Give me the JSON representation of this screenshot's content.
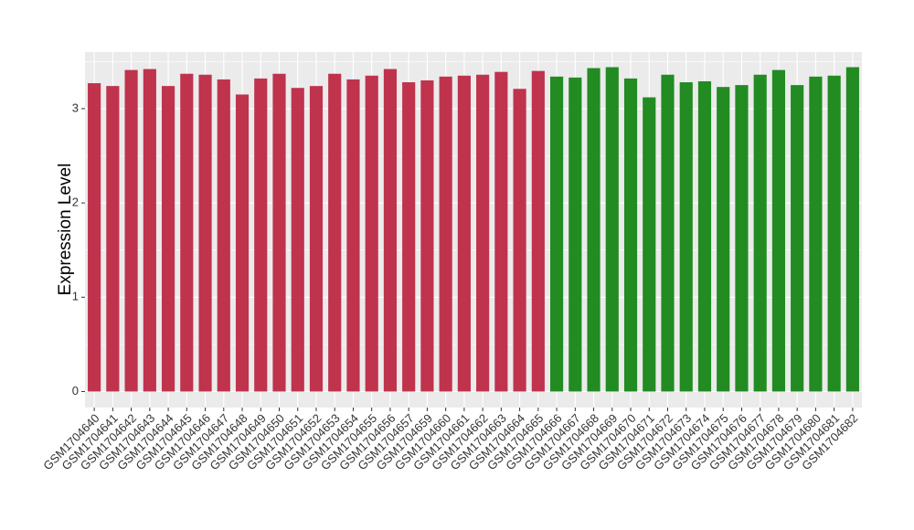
{
  "chart_data": {
    "type": "bar",
    "y_label": "Expression Level",
    "categories": [
      "GSM1704640",
      "GSM1704641",
      "GSM1704642",
      "GSM1704643",
      "GSM1704644",
      "GSM1704645",
      "GSM1704646",
      "GSM1704647",
      "GSM1704648",
      "GSM1704649",
      "GSM1704650",
      "GSM1704651",
      "GSM1704652",
      "GSM1704653",
      "GSM1704654",
      "GSM1704655",
      "GSM1704656",
      "GSM1704657",
      "GSM1704659",
      "GSM1704660",
      "GSM1704661",
      "GSM1704662",
      "GSM1704663",
      "GSM1704664",
      "GSM1704665",
      "GSM1704666",
      "GSM1704667",
      "GSM1704668",
      "GSM1704669",
      "GSM1704670",
      "GSM1704671",
      "GSM1704672",
      "GSM1704673",
      "GSM1704674",
      "GSM1704675",
      "GSM1704676",
      "GSM1704677",
      "GSM1704678",
      "GSM1704679",
      "GSM1704680",
      "GSM1704681",
      "GSM1704682"
    ],
    "values": [
      3.27,
      3.24,
      3.41,
      3.42,
      3.24,
      3.37,
      3.36,
      3.31,
      3.15,
      3.32,
      3.37,
      3.22,
      3.24,
      3.37,
      3.31,
      3.35,
      3.42,
      3.28,
      3.3,
      3.34,
      3.35,
      3.36,
      3.39,
      3.21,
      3.4,
      3.34,
      3.33,
      3.43,
      3.44,
      3.32,
      3.12,
      3.36,
      3.28,
      3.29,
      3.23,
      3.25,
      3.36,
      3.41,
      3.25,
      3.34,
      3.35,
      3.44
    ],
    "colors": [
      "#c0334d",
      "#c0334d",
      "#c0334d",
      "#c0334d",
      "#c0334d",
      "#c0334d",
      "#c0334d",
      "#c0334d",
      "#c0334d",
      "#c0334d",
      "#c0334d",
      "#c0334d",
      "#c0334d",
      "#c0334d",
      "#c0334d",
      "#c0334d",
      "#c0334d",
      "#c0334d",
      "#c0334d",
      "#c0334d",
      "#c0334d",
      "#c0334d",
      "#c0334d",
      "#c0334d",
      "#c0334d",
      "#228b22",
      "#228b22",
      "#228b22",
      "#228b22",
      "#228b22",
      "#228b22",
      "#228b22",
      "#228b22",
      "#228b22",
      "#228b22",
      "#228b22",
      "#228b22",
      "#228b22",
      "#228b22",
      "#228b22",
      "#228b22",
      "#228b22"
    ],
    "ylim": [
      -0.17,
      3.6
    ],
    "yticks": [
      0,
      1,
      2,
      3
    ],
    "grid": true
  }
}
